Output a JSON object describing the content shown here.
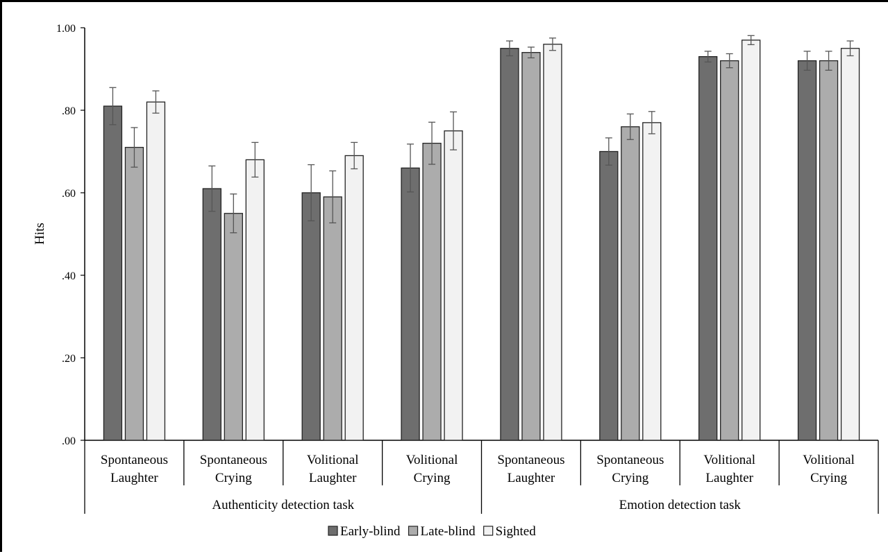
{
  "chart_data": {
    "type": "bar",
    "ylabel": "Hits",
    "ylim": [
      0,
      1
    ],
    "yticks": [
      {
        "value": 0.0,
        "label": ".00"
      },
      {
        "value": 0.2,
        "label": ".20"
      },
      {
        "value": 0.4,
        "label": ".40"
      },
      {
        "value": 0.6,
        "label": ".60"
      },
      {
        "value": 0.8,
        "label": ".80"
      },
      {
        "value": 1.0,
        "label": "1.00"
      }
    ],
    "grid": false,
    "legend_position": "bottom",
    "categories": [
      {
        "line1": "Spontaneous",
        "line2": "Laughter"
      },
      {
        "line1": "Spontaneous",
        "line2": "Crying"
      },
      {
        "line1": "Volitional",
        "line2": "Laughter"
      },
      {
        "line1": "Volitional",
        "line2": "Crying"
      },
      {
        "line1": "Spontaneous",
        "line2": "Laughter"
      },
      {
        "line1": "Spontaneous",
        "line2": "Crying"
      },
      {
        "line1": "Volitional",
        "line2": "Laughter"
      },
      {
        "line1": "Volitional",
        "line2": "Crying"
      }
    ],
    "groups": [
      {
        "label": "Authenticity detection task",
        "span": 4
      },
      {
        "label": "Emotion detection task",
        "span": 4
      }
    ],
    "series": [
      {
        "name": "Early-blind",
        "color": "#6e6e6e",
        "values": [
          0.81,
          0.61,
          0.6,
          0.66,
          0.95,
          0.7,
          0.93,
          0.92
        ],
        "errors": [
          0.045,
          0.055,
          0.068,
          0.058,
          0.018,
          0.033,
          0.013,
          0.023
        ]
      },
      {
        "name": "Late-blind",
        "color": "#acacac",
        "values": [
          0.71,
          0.55,
          0.59,
          0.72,
          0.94,
          0.76,
          0.92,
          0.92
        ],
        "errors": [
          0.048,
          0.047,
          0.063,
          0.051,
          0.013,
          0.031,
          0.017,
          0.023
        ]
      },
      {
        "name": "Sighted",
        "color": "#f2f2f2",
        "values": [
          0.82,
          0.68,
          0.69,
          0.75,
          0.96,
          0.77,
          0.97,
          0.95
        ],
        "errors": [
          0.027,
          0.042,
          0.032,
          0.046,
          0.015,
          0.027,
          0.011,
          0.018
        ]
      }
    ]
  }
}
